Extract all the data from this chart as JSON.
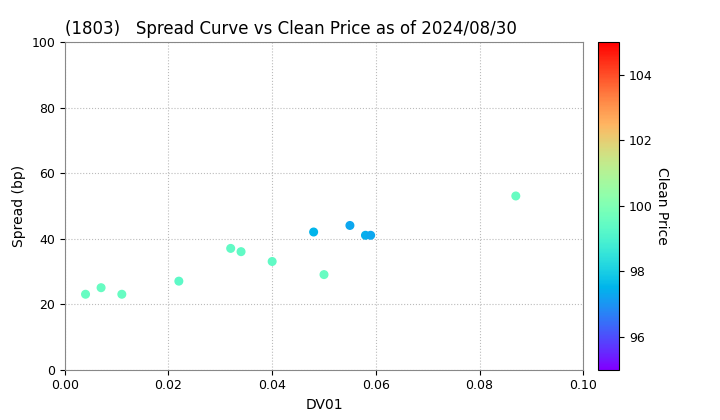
{
  "title": "(1803)   Spread Curve vs Clean Price as of 2024/08/30",
  "xlabel": "DV01",
  "ylabel": "Spread (bp)",
  "colorbar_label": "Clean Price",
  "xlim": [
    0.0,
    0.1
  ],
  "ylim": [
    0,
    100
  ],
  "xticks": [
    0.0,
    0.02,
    0.04,
    0.06,
    0.08,
    0.1
  ],
  "yticks": [
    0,
    20,
    40,
    60,
    80,
    100
  ],
  "cmap_range": [
    95.0,
    105.0
  ],
  "cbar_ticks": [
    96,
    98,
    100,
    102,
    104
  ],
  "points": [
    {
      "dv01": 0.004,
      "spread": 23,
      "price": 99.5
    },
    {
      "dv01": 0.007,
      "spread": 25,
      "price": 99.5
    },
    {
      "dv01": 0.011,
      "spread": 23,
      "price": 99.5
    },
    {
      "dv01": 0.022,
      "spread": 27,
      "price": 99.3
    },
    {
      "dv01": 0.032,
      "spread": 37,
      "price": 99.4
    },
    {
      "dv01": 0.034,
      "spread": 36,
      "price": 99.4
    },
    {
      "dv01": 0.04,
      "spread": 33,
      "price": 99.4
    },
    {
      "dv01": 0.048,
      "spread": 42,
      "price": 97.5
    },
    {
      "dv01": 0.05,
      "spread": 29,
      "price": 99.5
    },
    {
      "dv01": 0.055,
      "spread": 44,
      "price": 97.3
    },
    {
      "dv01": 0.058,
      "spread": 41,
      "price": 97.4
    },
    {
      "dv01": 0.059,
      "spread": 41,
      "price": 97.3
    },
    {
      "dv01": 0.087,
      "spread": 53,
      "price": 99.5
    }
  ],
  "grid_color": "#bbbbbb",
  "bg_color": "#ffffff",
  "title_fontsize": 12,
  "label_fontsize": 10,
  "tick_fontsize": 9,
  "marker_size": 30
}
